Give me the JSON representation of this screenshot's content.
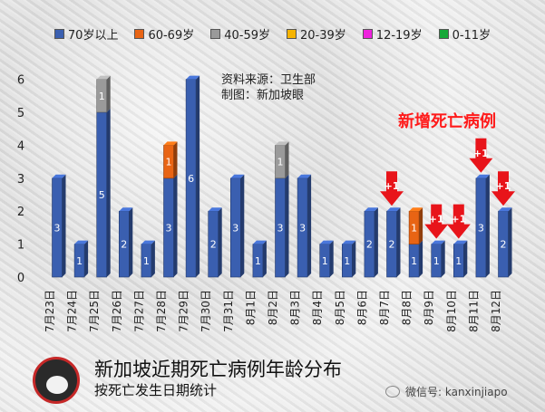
{
  "legend": [
    {
      "label": "70岁以上",
      "color": "#3a5fb0"
    },
    {
      "label": "60-69岁",
      "color": "#e86414"
    },
    {
      "label": "40-59岁",
      "color": "#9a9a9a"
    },
    {
      "label": "20-39岁",
      "color": "#f6b400"
    },
    {
      "label": "12-19岁",
      "color": "#ee22dd"
    },
    {
      "label": "0-11岁",
      "color": "#16a838"
    }
  ],
  "source": {
    "line1": "资料来源：卫生部",
    "line2": "制图：新加坡眼"
  },
  "headline": "新增死亡病例",
  "title": "新加坡近期死亡病例年龄分布",
  "subtitle": "按死亡发生日期统计",
  "logo_text": "新加坡眼",
  "watermark": "微信号: kanxinjiapo",
  "chart_data": {
    "type": "bar",
    "stacked": true,
    "categories": [
      "7月23日",
      "7月24日",
      "7月25日",
      "7月26日",
      "7月27日",
      "7月28日",
      "7月29日",
      "7月30日",
      "7月31日",
      "8月1日",
      "8月2日",
      "8月3日",
      "8月4日",
      "8月5日",
      "8月6日",
      "8月7日",
      "8月8日",
      "8月9日",
      "8月10日",
      "8月11日",
      "8月12日"
    ],
    "series": [
      {
        "name": "70岁以上",
        "color": "#3a5fb0",
        "values": [
          3,
          1,
          5,
          2,
          1,
          3,
          6,
          2,
          3,
          1,
          3,
          3,
          1,
          1,
          2,
          2,
          1,
          1,
          1,
          3,
          2
        ]
      },
      {
        "name": "60-69岁",
        "color": "#e86414",
        "values": [
          0,
          0,
          0,
          0,
          0,
          1,
          0,
          0,
          0,
          0,
          0,
          0,
          0,
          0,
          0,
          0,
          1,
          0,
          0,
          0,
          0
        ]
      },
      {
        "name": "40-59岁",
        "color": "#9a9a9a",
        "values": [
          0,
          0,
          1,
          0,
          0,
          0,
          0,
          0,
          0,
          0,
          1,
          0,
          0,
          0,
          0,
          0,
          0,
          0,
          0,
          0,
          0
        ]
      },
      {
        "name": "20-39岁",
        "color": "#f6b400",
        "values": [
          0,
          0,
          0,
          0,
          0,
          0,
          0,
          0,
          0,
          0,
          0,
          0,
          0,
          0,
          0,
          0,
          0,
          0,
          0,
          0,
          0
        ]
      },
      {
        "name": "12-19岁",
        "color": "#ee22dd",
        "values": [
          0,
          0,
          0,
          0,
          0,
          0,
          0,
          0,
          0,
          0,
          0,
          0,
          0,
          0,
          0,
          0,
          0,
          0,
          0,
          0,
          0
        ]
      },
      {
        "name": "0-11岁",
        "color": "#16a838",
        "values": [
          0,
          0,
          0,
          0,
          0,
          0,
          0,
          0,
          0,
          0,
          0,
          0,
          0,
          0,
          0,
          0,
          0,
          0,
          0,
          0,
          0
        ]
      }
    ],
    "yticks": [
      0,
      1,
      2,
      3,
      4,
      5,
      6
    ],
    "ylim": [
      0,
      6
    ],
    "annotations": [
      {
        "category": "8月7日",
        "label": "+1"
      },
      {
        "category": "8月9日",
        "label": "+1"
      },
      {
        "category": "8月10日",
        "label": "+1"
      },
      {
        "category": "8月11日",
        "label": "+1"
      },
      {
        "category": "8月12日",
        "label": "+1"
      }
    ],
    "annotation_color": "#e8141a"
  }
}
